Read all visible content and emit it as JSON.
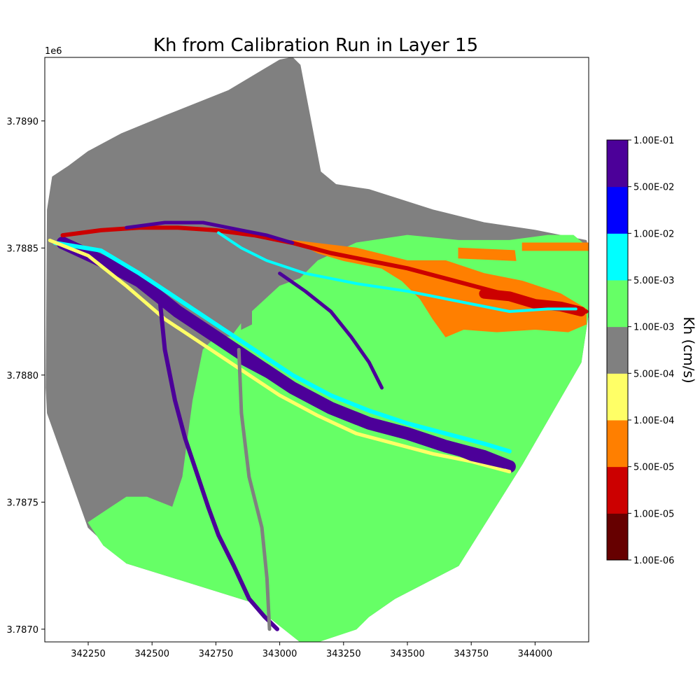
{
  "chart_data": {
    "type": "heatmap",
    "title": "Kh from Calibration Run in Layer 15",
    "xlabel": "",
    "ylabel": "",
    "y_offset_label": "1e6",
    "xlim": [
      342080,
      344210
    ],
    "ylim": [
      3.78695,
      3.78925
    ],
    "x_ticks": [
      {
        "value": 342250,
        "label": "342250"
      },
      {
        "value": 342500,
        "label": "342500"
      },
      {
        "value": 342750,
        "label": "342750"
      },
      {
        "value": 343000,
        "label": "343000"
      },
      {
        "value": 343250,
        "label": "343250"
      },
      {
        "value": 343500,
        "label": "343500"
      },
      {
        "value": 343750,
        "label": "343750"
      },
      {
        "value": 344000,
        "label": "344000"
      }
    ],
    "y_ticks": [
      {
        "value": 3.787,
        "label": "3.7870"
      },
      {
        "value": 3.7875,
        "label": "3.7875"
      },
      {
        "value": 3.788,
        "label": "3.7880"
      },
      {
        "value": 3.7885,
        "label": "3.7885"
      },
      {
        "value": 3.789,
        "label": "3.7890"
      }
    ],
    "colorbar": {
      "title": "Kh (cm/s)",
      "boundaries": [
        "1.00E-06",
        "1.00E-05",
        "5.00E-05",
        "1.00E-04",
        "5.00E-04",
        "1.00E-03",
        "5.00E-03",
        "1.00E-02",
        "5.00E-02",
        "1.00E-01"
      ],
      "colors": [
        "#660000",
        "#cc0000",
        "#ff7f00",
        "#ffff66",
        "#808080",
        "#66ff66",
        "#00ffff",
        "#0000ff",
        "#4c0099"
      ]
    },
    "zones": [
      {
        "color": "#808080",
        "points": [
          [
            342085,
            3.78795
          ],
          [
            342090,
            3.78865
          ],
          [
            342110,
            3.78878
          ],
          [
            342170,
            3.78882
          ],
          [
            342250,
            3.78888
          ],
          [
            342380,
            3.78895
          ],
          [
            342550,
            3.78902
          ],
          [
            342800,
            3.78912
          ],
          [
            343000,
            3.78924
          ],
          [
            343050,
            3.78925
          ],
          [
            343080,
            3.78922
          ],
          [
            343160,
            3.7888
          ],
          [
            343220,
            3.78875
          ],
          [
            343350,
            3.78873
          ],
          [
            343600,
            3.78865
          ],
          [
            343800,
            3.7886
          ],
          [
            344000,
            3.78857
          ],
          [
            344200,
            3.78853
          ],
          [
            344210,
            3.7885
          ],
          [
            344210,
            3.78825
          ],
          [
            344180,
            3.78805
          ],
          [
            343950,
            3.78765
          ],
          [
            343700,
            3.78725
          ],
          [
            343450,
            3.78712
          ],
          [
            343350,
            3.78705
          ],
          [
            343150,
            3.78699
          ],
          [
            343080,
            3.78699
          ],
          [
            342980,
            3.78703
          ],
          [
            342880,
            3.78711
          ],
          [
            342400,
            3.78726
          ],
          [
            342250,
            3.7874
          ],
          [
            342090,
            3.78785
          ]
        ]
      },
      {
        "color": "#66ff66",
        "points": [
          [
            342250,
            3.78742
          ],
          [
            342340,
            3.78748
          ],
          [
            342400,
            3.78752
          ],
          [
            342480,
            3.78752
          ],
          [
            342580,
            3.78748
          ],
          [
            342620,
            3.7876
          ],
          [
            342660,
            3.7879
          ],
          [
            342700,
            3.7881
          ],
          [
            342750,
            3.78815
          ],
          [
            342810,
            3.78815
          ],
          [
            342870,
            3.78823
          ],
          [
            343000,
            3.78835
          ],
          [
            343080,
            3.78838
          ],
          [
            343150,
            3.78845
          ],
          [
            343300,
            3.78852
          ],
          [
            343500,
            3.78855
          ],
          [
            343700,
            3.78853
          ],
          [
            343900,
            3.78853
          ],
          [
            344050,
            3.78855
          ],
          [
            344150,
            3.78855
          ],
          [
            344210,
            3.7885
          ],
          [
            344210,
            3.78825
          ],
          [
            344180,
            3.78805
          ],
          [
            343950,
            3.78765
          ],
          [
            343700,
            3.78725
          ],
          [
            343450,
            3.78712
          ],
          [
            343350,
            3.78705
          ],
          [
            343300,
            3.787
          ],
          [
            343150,
            3.78695
          ],
          [
            343080,
            3.78695
          ],
          [
            342980,
            3.78703
          ],
          [
            342880,
            3.78711
          ],
          [
            342400,
            3.78726
          ],
          [
            342310,
            3.78733
          ]
        ]
      },
      {
        "color": "#808080",
        "points": [
          [
            342850,
            3.7884
          ],
          [
            342890,
            3.78838
          ],
          [
            342890,
            3.7882
          ],
          [
            342850,
            3.78818
          ]
        ]
      },
      {
        "color": "#ff7f00",
        "points": [
          [
            343050,
            3.78853
          ],
          [
            343300,
            3.7885
          ],
          [
            343500,
            3.78845
          ],
          [
            343650,
            3.78845
          ],
          [
            343800,
            3.7884
          ],
          [
            343950,
            3.78837
          ],
          [
            344100,
            3.78832
          ],
          [
            344200,
            3.78826
          ],
          [
            344200,
            3.7882
          ],
          [
            344130,
            3.78817
          ],
          [
            344000,
            3.78818
          ],
          [
            343850,
            3.78817
          ],
          [
            343720,
            3.78818
          ],
          [
            343650,
            3.78815
          ],
          [
            343600,
            3.78822
          ],
          [
            343550,
            3.7883
          ],
          [
            343480,
            3.78837
          ],
          [
            343400,
            3.78842
          ],
          [
            343250,
            3.78845
          ],
          [
            343150,
            3.78848
          ]
        ]
      },
      {
        "color": "#ff7f00",
        "points": [
          [
            343700,
            3.7885
          ],
          [
            343920,
            3.78849
          ],
          [
            343925,
            3.78845
          ],
          [
            343700,
            3.78846
          ]
        ]
      },
      {
        "color": "#ff7f00",
        "points": [
          [
            343950,
            3.78852
          ],
          [
            344210,
            3.78852
          ],
          [
            344210,
            3.78849
          ],
          [
            343950,
            3.78849
          ]
        ]
      }
    ],
    "bands": [
      {
        "color": "#4c0099",
        "width": 18,
        "points": [
          [
            342150,
            3.78852
          ],
          [
            342300,
            3.78845
          ],
          [
            342450,
            3.78837
          ],
          [
            342600,
            3.78825
          ],
          [
            342750,
            3.78815
          ],
          [
            342900,
            3.78805
          ],
          [
            343050,
            3.78795
          ],
          [
            343200,
            3.78787
          ],
          [
            343350,
            3.78781
          ],
          [
            343500,
            3.78777
          ],
          [
            343650,
            3.78772
          ],
          [
            343800,
            3.78768
          ],
          [
            343900,
            3.78764
          ]
        ]
      },
      {
        "color": "#00ffff",
        "width": 6,
        "points": [
          [
            342120,
            3.78852
          ],
          [
            342300,
            3.78849
          ],
          [
            342450,
            3.7884
          ],
          [
            342600,
            3.7883
          ],
          [
            342750,
            3.7882
          ],
          [
            342900,
            3.7881
          ],
          [
            343050,
            3.788
          ],
          [
            343200,
            3.78792
          ],
          [
            343350,
            3.78786
          ],
          [
            343500,
            3.78781
          ],
          [
            343650,
            3.78777
          ],
          [
            343800,
            3.78773
          ],
          [
            343900,
            3.7877
          ]
        ]
      },
      {
        "color": "#ffff66",
        "width": 5,
        "points": [
          [
            342100,
            3.78853
          ],
          [
            342250,
            3.78847
          ],
          [
            342400,
            3.78835
          ],
          [
            342550,
            3.78822
          ],
          [
            342700,
            3.78812
          ],
          [
            342850,
            3.78802
          ],
          [
            343000,
            3.78792
          ],
          [
            343150,
            3.78784
          ],
          [
            343300,
            3.78777
          ],
          [
            343450,
            3.78773
          ],
          [
            343600,
            3.78769
          ],
          [
            343750,
            3.78766
          ],
          [
            343900,
            3.78762
          ]
        ]
      },
      {
        "color": "#4c0099",
        "width": 6,
        "points": [
          [
            342850,
            3.78805
          ],
          [
            343000,
            3.78797
          ],
          [
            343150,
            3.78789
          ],
          [
            343300,
            3.78782
          ],
          [
            343450,
            3.78778
          ],
          [
            343600,
            3.78773
          ],
          [
            343750,
            3.78767
          ],
          [
            343880,
            3.78764
          ]
        ]
      },
      {
        "color": "#cc0000",
        "width": 6,
        "points": [
          [
            342150,
            3.78855
          ],
          [
            342300,
            3.78857
          ],
          [
            342450,
            3.78858
          ],
          [
            342600,
            3.78858
          ],
          [
            342750,
            3.78857
          ],
          [
            342900,
            3.78855
          ],
          [
            343050,
            3.78852
          ],
          [
            343200,
            3.78848
          ],
          [
            343350,
            3.78845
          ],
          [
            343500,
            3.78842
          ],
          [
            343650,
            3.78838
          ],
          [
            343800,
            3.78834
          ],
          [
            343950,
            3.7883
          ],
          [
            344100,
            3.78827
          ],
          [
            344200,
            3.78825
          ]
        ]
      },
      {
        "color": "#cc0000",
        "width": 14,
        "points": [
          [
            343800,
            3.78832
          ],
          [
            343900,
            3.78831
          ],
          [
            344000,
            3.78828
          ],
          [
            344100,
            3.78827
          ],
          [
            344180,
            3.78825
          ]
        ]
      },
      {
        "color": "#4c0099",
        "width": 5,
        "points": [
          [
            342400,
            3.78858
          ],
          [
            342550,
            3.7886
          ],
          [
            342700,
            3.7886
          ],
          [
            342850,
            3.78857
          ],
          [
            342950,
            3.78855
          ],
          [
            343050,
            3.78852
          ]
        ]
      },
      {
        "color": "#00ffff",
        "width": 4,
        "points": [
          [
            342760,
            3.78856
          ],
          [
            342850,
            3.7885
          ],
          [
            342950,
            3.78845
          ],
          [
            343100,
            3.7884
          ],
          [
            343300,
            3.78836
          ],
          [
            343500,
            3.78833
          ],
          [
            343700,
            3.78829
          ],
          [
            343900,
            3.78825
          ],
          [
            344050,
            3.78826
          ],
          [
            344160,
            3.78826
          ]
        ]
      },
      {
        "color": "#4c0099",
        "width": 5,
        "points": [
          [
            343000,
            3.7884
          ],
          [
            343100,
            3.78833
          ],
          [
            343200,
            3.78825
          ],
          [
            343280,
            3.78815
          ],
          [
            343350,
            3.78805
          ],
          [
            343400,
            3.78795
          ]
        ]
      },
      {
        "color": "#4c0099",
        "width": 6,
        "points": [
          [
            342530,
            3.7883
          ],
          [
            342550,
            3.7881
          ],
          [
            342590,
            3.7879
          ],
          [
            342630,
            3.78775
          ],
          [
            342680,
            3.7876
          ],
          [
            342720,
            3.78748
          ],
          [
            342760,
            3.78737
          ],
          [
            342820,
            3.78725
          ],
          [
            342880,
            3.78712
          ],
          [
            342940,
            3.78705
          ],
          [
            342990,
            3.787
          ]
        ]
      },
      {
        "color": "#808080",
        "width": 5,
        "points": [
          [
            342840,
            3.7881
          ],
          [
            342850,
            3.78785
          ],
          [
            342880,
            3.7876
          ],
          [
            342930,
            3.7874
          ],
          [
            342950,
            3.7872
          ],
          [
            342960,
            3.787
          ]
        ]
      }
    ]
  }
}
